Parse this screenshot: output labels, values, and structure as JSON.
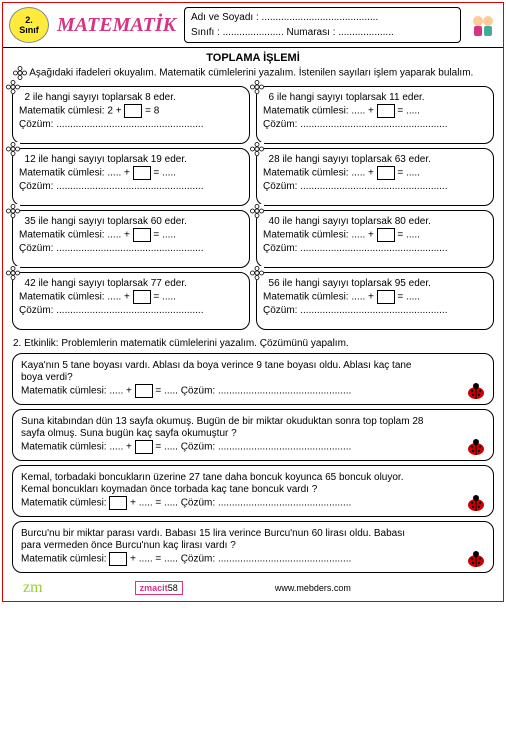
{
  "header": {
    "grade_num": "2.",
    "grade_word": "Sınıf",
    "title": "MATEMATİK",
    "name_label": "Adı ve Soyadı : ..........................................",
    "class_label": "Sınıfı : ......................   Numarası : ...................."
  },
  "section_title": "TOPLAMA   İŞLEMİ",
  "instruction": "Aşağıdaki ifadeleri okuyalım. Matematik cümlelerini yazalım. İstenilen sayıları işlem yaparak bulalım.",
  "problems": [
    {
      "q": "2   ile hangi  sayıyı toplarsak 8 eder.",
      "math": "Matematik cümlesi:  2 + ",
      "eq": " = 8",
      "sol": "Çözüm: ....................................................."
    },
    {
      "q": "6   ile hangi  sayıyı toplarsak 11 eder.",
      "math": "Matematik cümlesi:  ..... + ",
      "eq": " = .....",
      "sol": "Çözüm: ....................................................."
    },
    {
      "q": "12   ile hangi  sayıyı toplarsak 19 eder.",
      "math": "Matematik cümlesi:  ..... + ",
      "eq": " = .....",
      "sol": "Çözüm: ....................................................."
    },
    {
      "q": "28   ile hangi  sayıyı toplarsak 63 eder.",
      "math": "Matematik cümlesi:  ..... + ",
      "eq": " = .....",
      "sol": "Çözüm: ....................................................."
    },
    {
      "q": "35   ile hangi  sayıyı toplarsak 60 eder.",
      "math": "Matematik cümlesi:  ..... + ",
      "eq": " = .....",
      "sol": "Çözüm: ....................................................."
    },
    {
      "q": "40   ile hangi  sayıyı toplarsak 80 eder.",
      "math": "Matematik cümlesi:  ..... + ",
      "eq": " = .....",
      "sol": "Çözüm: ....................................................."
    },
    {
      "q": "42   ile hangi  sayıyı toplarsak 77 eder.",
      "math": "Matematik cümlesi:  ..... + ",
      "eq": " = .....",
      "sol": "Çözüm: ....................................................."
    },
    {
      "q": "56   ile hangi  sayıyı toplarsak 95 eder.",
      "math": "Matematik cümlesi:  ..... + ",
      "eq": " = .....",
      "sol": "Çözüm: ....................................................."
    }
  ],
  "activity2_title": "2. Etkinlik: Problemlerin matematik cümlelerini yazalım. Çözümünü yapalım.",
  "word_problems": [
    {
      "t1": "Kaya'nın 5 tane boyası vardı.  Ablası da boya verince 9 tane boyası oldu.  Ablası kaç tane",
      "t2": "boya verdi?",
      "m": "Matematik cümlesi:  ..... + ",
      "eq": " = .....    Çözüm: ................................................"
    },
    {
      "t1": "Suna kitabından dün 13 sayfa okumuş. Bugün de bir miktar okuduktan sonra top toplam 28",
      "t2": "sayfa olmuş. Suna bugün kaç  sayfa okumuştur ?",
      "m": "Matematik cümlesi:  ..... + ",
      "eq": " = .....    Çözüm: ................................................"
    },
    {
      "t1": "Kemal, torbadaki  boncukların üzerine 27 tane daha boncuk koyunca 65 boncuk oluyor.",
      "t2": "Kemal boncukları koymadan  önce torbada kaç tane boncuk vardı ?",
      "m": "Matematik cümlesi: ",
      "eq": " + ..... = .....    Çözüm: ................................................"
    },
    {
      "t1": "Burcu'nu  bir miktar parası vardı.  Babası  15 lira  verince Burcu'nun 60 lirası oldu. Babası",
      "t2": "para vermeden önce Burcu'nun kaç lirası vardı ?",
      "m": "Matematik cümlesi: ",
      "eq": " + ..... = .....    Çözüm: ................................................"
    }
  ],
  "footer": {
    "author": "zmacit",
    "author_num": "58",
    "site": "www.mebders.com"
  }
}
